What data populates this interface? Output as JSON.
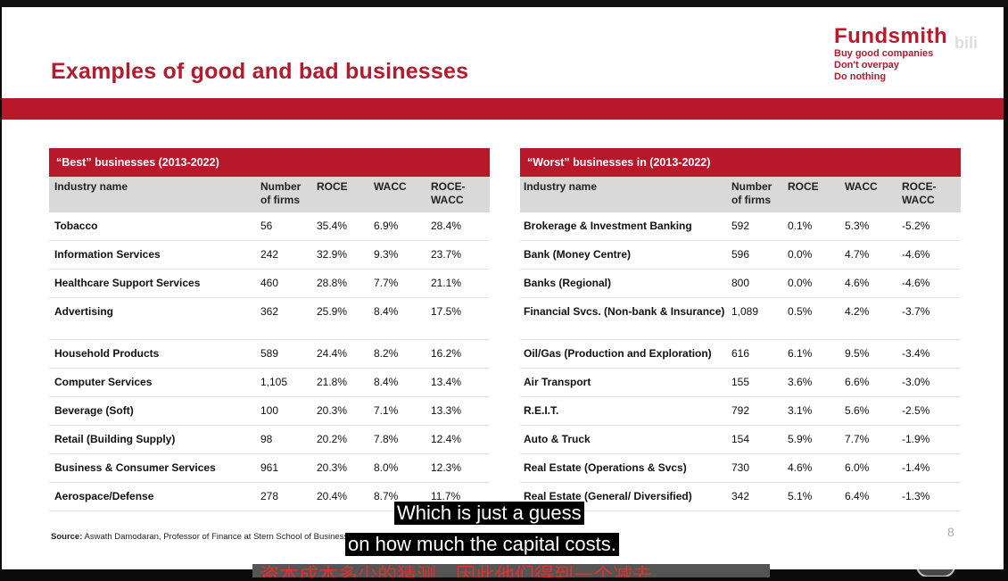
{
  "slide": {
    "title": "Examples of good and bad businesses",
    "logo_name": "Fundsmith",
    "logo_lines": [
      "Buy good companies",
      "Don't overpay",
      "Do nothing"
    ],
    "watermark": "bili",
    "source_label": "Source:",
    "source_text": "Aswath Damodaran, Professor of Finance at Stern School of Business, New York University, Jan 2023 data",
    "page_number": "8",
    "brand_color": "#b7182a"
  },
  "best": {
    "header": "“Best” businesses (2013-2022)",
    "columns": [
      "Industry name",
      "Number of firms",
      "ROCE",
      "WACC",
      "ROCE-WACC"
    ],
    "rows": [
      {
        "name": "Tobacco",
        "firms": "56",
        "roce": "35.4%",
        "wacc": "6.9%",
        "diff": "28.4%"
      },
      {
        "name": "Information Services",
        "firms": "242",
        "roce": "32.9%",
        "wacc": "9.3%",
        "diff": "23.7%"
      },
      {
        "name": "Healthcare Support Services",
        "firms": "460",
        "roce": "28.8%",
        "wacc": "7.7%",
        "diff": "21.1%"
      },
      {
        "name": "Advertising",
        "firms": "362",
        "roce": "25.9%",
        "wacc": "8.4%",
        "diff": "17.5%"
      },
      {
        "name": "Household Products",
        "firms": "589",
        "roce": "24.4%",
        "wacc": "8.2%",
        "diff": "16.2%"
      },
      {
        "name": "Computer Services",
        "firms": "1,105",
        "roce": "21.8%",
        "wacc": "8.4%",
        "diff": "13.4%"
      },
      {
        "name": "Beverage (Soft)",
        "firms": "100",
        "roce": "20.3%",
        "wacc": "7.1%",
        "diff": "13.3%"
      },
      {
        "name": "Retail (Building Supply)",
        "firms": "98",
        "roce": "20.2%",
        "wacc": "7.8%",
        "diff": "12.4%"
      },
      {
        "name": "Business & Consumer Services",
        "firms": "961",
        "roce": "20.3%",
        "wacc": "8.0%",
        "diff": "12.3%"
      },
      {
        "name": "Aerospace/Defense",
        "firms": "278",
        "roce": "20.4%",
        "wacc": "8.7%",
        "diff": "11.7%"
      }
    ]
  },
  "worst": {
    "header": "“Worst” businesses in (2013-2022)",
    "columns": [
      "Industry name",
      "Number of firms",
      "ROCE",
      "WACC",
      "ROCE-WACC"
    ],
    "rows": [
      {
        "name": "Brokerage & Investment Banking",
        "firms": "592",
        "roce": "0.1%",
        "wacc": "5.3%",
        "diff": "-5.2%"
      },
      {
        "name": "Bank (Money Centre)",
        "firms": "596",
        "roce": "0.0%",
        "wacc": "4.7%",
        "diff": "-4.6%"
      },
      {
        "name": "Banks (Regional)",
        "firms": "800",
        "roce": "0.0%",
        "wacc": "4.6%",
        "diff": "-4.6%"
      },
      {
        "name": "Financial Svcs. (Non-bank & Insurance)",
        "firms": "1,089",
        "roce": "0.5%",
        "wacc": "4.2%",
        "diff": "-3.7%"
      },
      {
        "name": "Oil/Gas (Production and Exploration)",
        "firms": "616",
        "roce": "6.1%",
        "wacc": "9.5%",
        "diff": "-3.4%"
      },
      {
        "name": "Air Transport",
        "firms": "155",
        "roce": "3.6%",
        "wacc": "6.6%",
        "diff": "-3.0%"
      },
      {
        "name": "R.E.I.T.",
        "firms": "792",
        "roce": "3.1%",
        "wacc": "5.6%",
        "diff": "-2.5%"
      },
      {
        "name": "Auto & Truck",
        "firms": "154",
        "roce": "5.9%",
        "wacc": "7.7%",
        "diff": "-1.9%"
      },
      {
        "name": "Real Estate (Operations & Svcs)",
        "firms": "730",
        "roce": "4.6%",
        "wacc": "6.0%",
        "diff": "-1.4%"
      },
      {
        "name": "Real Estate (General/ Diversified)",
        "firms": "342",
        "roce": "5.1%",
        "wacc": "6.4%",
        "diff": "-1.3%"
      }
    ]
  },
  "captions": {
    "line1": "Which is just a guess",
    "line2": "on how much the capital costs.",
    "chinese": "资本成本多少的猜测，因此他们得到一个减去"
  },
  "player": {
    "mute_icon": "speaker-muted-icon",
    "play_icon": "play-icon"
  }
}
